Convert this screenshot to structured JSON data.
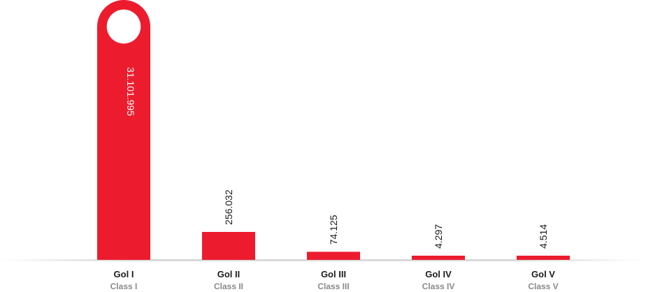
{
  "chart_data": {
    "type": "bar",
    "categories": [
      "Gol I",
      "Gol II",
      "Gol III",
      "Gol IV",
      "Gol V"
    ],
    "subcategories": [
      "Class I",
      "Class II",
      "Class III",
      "Class IV",
      "Class V"
    ],
    "values": [
      31101995,
      256032,
      74125,
      4297,
      4514
    ],
    "value_labels": [
      "31.101.995",
      "256.032",
      "74.125",
      "4.297",
      "4.514"
    ],
    "title": "",
    "xlabel": "",
    "ylabel": "",
    "ylim": [
      0,
      31101995
    ],
    "grid": false,
    "legend": "none"
  },
  "colors": {
    "bar": "#ec1c2e",
    "label_inside": "#ffffff",
    "label_outside": "#1c1c1c",
    "category": "#1c1c1c",
    "subcategory": "#8a8a8a",
    "baseline": "#d9d9d9"
  }
}
